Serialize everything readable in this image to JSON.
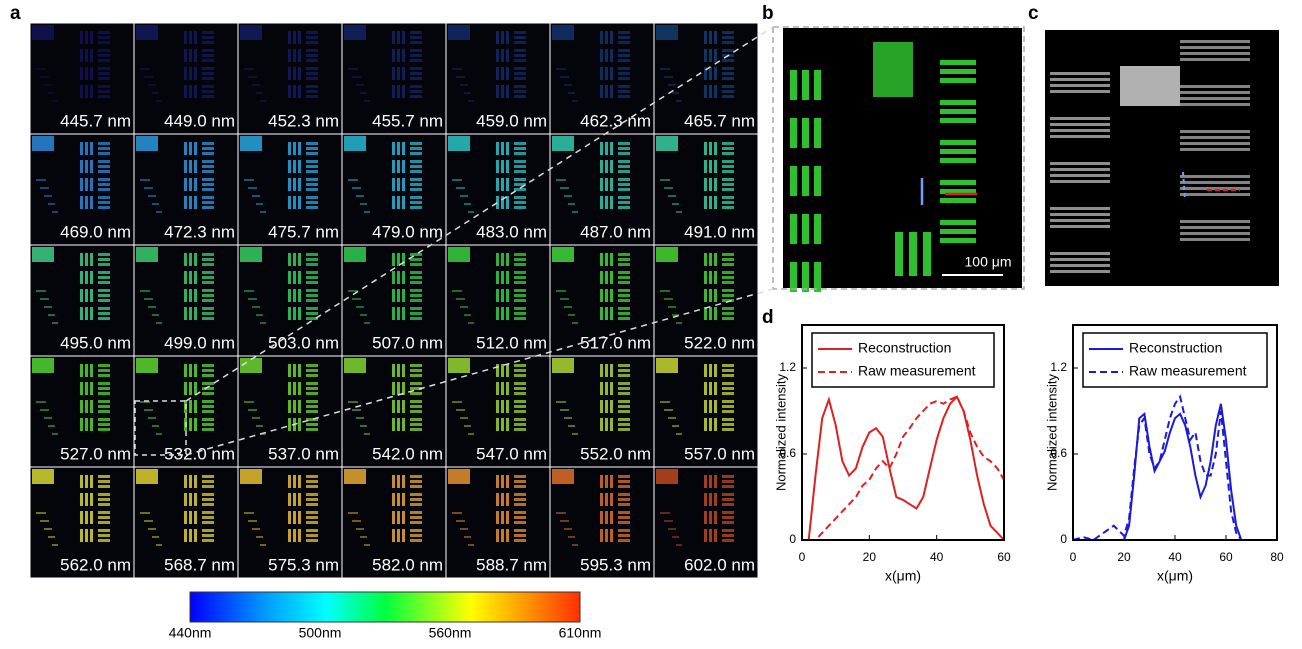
{
  "panel_labels": {
    "a": "a",
    "b": "b",
    "c": "c",
    "d": "d"
  },
  "tiles": [
    {
      "label": "445.7 nm",
      "color": "#1d1f9e"
    },
    {
      "label": "449.0 nm",
      "color": "#1f2ca8"
    },
    {
      "label": "452.3 nm",
      "color": "#2233b0"
    },
    {
      "label": "455.7 nm",
      "color": "#2040b8"
    },
    {
      "label": "459.0 nm",
      "color": "#1f4cc0"
    },
    {
      "label": "462.3 nm",
      "color": "#1e5ac8"
    },
    {
      "label": "465.7 nm",
      "color": "#2070d0"
    },
    {
      "label": "469.0 nm",
      "color": "#2a8ad8"
    },
    {
      "label": "472.3 nm",
      "color": "#2a9ade"
    },
    {
      "label": "475.7 nm",
      "color": "#28a8e0"
    },
    {
      "label": "479.0 nm",
      "color": "#28b8d8"
    },
    {
      "label": "483.0 nm",
      "color": "#2cc4c8"
    },
    {
      "label": "487.0 nm",
      "color": "#30ccb0"
    },
    {
      "label": "491.0 nm",
      "color": "#38d0a0"
    },
    {
      "label": "495.0 nm",
      "color": "#40d088"
    },
    {
      "label": "499.0 nm",
      "color": "#3ad070"
    },
    {
      "label": "503.0 nm",
      "color": "#34d060"
    },
    {
      "label": "507.0 nm",
      "color": "#30d050"
    },
    {
      "label": "512.0 nm",
      "color": "#38d040"
    },
    {
      "label": "517.0 nm",
      "color": "#40d838"
    },
    {
      "label": "522.0 nm",
      "color": "#48d830"
    },
    {
      "label": "527.0 nm",
      "color": "#50d830"
    },
    {
      "label": "532.0 nm",
      "color": "#5cd830"
    },
    {
      "label": "537.0 nm",
      "color": "#6cd830"
    },
    {
      "label": "542.0 nm",
      "color": "#80d830"
    },
    {
      "label": "547.0 nm",
      "color": "#98d830"
    },
    {
      "label": "552.0 nm",
      "color": "#b0d830"
    },
    {
      "label": "557.0 nm",
      "color": "#c8d830"
    },
    {
      "label": "562.0 nm",
      "color": "#d8d830"
    },
    {
      "label": "568.7 nm",
      "color": "#e0d030"
    },
    {
      "label": "575.3 nm",
      "color": "#e8c030"
    },
    {
      "label": "582.0 nm",
      "color": "#e8a830"
    },
    {
      "label": "588.7 nm",
      "color": "#e89030"
    },
    {
      "label": "595.3 nm",
      "color": "#e07028"
    },
    {
      "label": "602.0 nm",
      "color": "#c04820"
    }
  ],
  "colorbar": {
    "labels": [
      "440nm",
      "500nm",
      "560nm",
      "610nm"
    ]
  },
  "scale_bar": "100 μm",
  "chart_data": [
    {
      "type": "line",
      "xlabel": "x(μm)",
      "ylabel": "Normalized intensity",
      "legend": "top",
      "x": [
        2,
        4,
        6,
        8,
        10,
        12,
        14,
        16,
        18,
        20,
        22,
        24,
        26,
        28,
        30,
        32,
        34,
        36,
        38,
        40,
        42,
        44,
        46,
        48,
        50,
        52,
        54,
        56,
        58,
        60
      ],
      "xlim": [
        0,
        60
      ],
      "ylim": [
        0,
        1.5
      ],
      "xticks": [
        0,
        20,
        40,
        60
      ],
      "yticks": [
        0,
        0.6,
        1.2
      ],
      "series": [
        {
          "name": "Reconstruction",
          "color": "#e02020",
          "linestyle": "solid",
          "values": [
            0,
            0.45,
            0.85,
            0.98,
            0.8,
            0.55,
            0.45,
            0.5,
            0.65,
            0.75,
            0.78,
            0.72,
            0.5,
            0.3,
            0.28,
            0.25,
            0.22,
            0.3,
            0.5,
            0.7,
            0.85,
            0.95,
            1.0,
            0.9,
            0.7,
            0.45,
            0.25,
            0.1,
            0.05,
            0
          ]
        },
        {
          "name": "Raw measurement",
          "color": "#e02020",
          "linestyle": "dashed",
          "values": [
            0,
            0,
            0.05,
            0.1,
            0.15,
            0.2,
            0.25,
            0.3,
            0.38,
            0.42,
            0.5,
            0.55,
            0.5,
            0.6,
            0.72,
            0.78,
            0.85,
            0.9,
            0.95,
            0.97,
            0.95,
            0.98,
            1.0,
            0.9,
            0.75,
            0.65,
            0.58,
            0.55,
            0.5,
            0.42
          ]
        }
      ]
    },
    {
      "type": "line",
      "xlabel": "x(μm)",
      "ylabel": "Normalized intensity",
      "legend": "top",
      "x": [
        0,
        4,
        8,
        12,
        16,
        20,
        22,
        24,
        26,
        28,
        30,
        32,
        34,
        36,
        38,
        40,
        42,
        44,
        46,
        48,
        50,
        52,
        54,
        56,
        58,
        60,
        62,
        64,
        66,
        70,
        75,
        80
      ],
      "xlim": [
        0,
        80
      ],
      "ylim": [
        0,
        1.5
      ],
      "xticks": [
        0,
        20,
        40,
        60,
        80
      ],
      "yticks": [
        0,
        0.6,
        1.2
      ],
      "series": [
        {
          "name": "Reconstruction",
          "color": "#1a1adc",
          "linestyle": "solid",
          "values": [
            0,
            0,
            0,
            0,
            0,
            0,
            0.1,
            0.45,
            0.85,
            0.88,
            0.65,
            0.48,
            0.55,
            0.62,
            0.75,
            0.85,
            0.88,
            0.8,
            0.65,
            0.45,
            0.3,
            0.38,
            0.55,
            0.8,
            0.95,
            0.7,
            0.35,
            0.1,
            0,
            0,
            0,
            0
          ]
        },
        {
          "name": "Raw measurement",
          "color": "#1a1adc",
          "linestyle": "dashed",
          "values": [
            0,
            0.02,
            0,
            0.05,
            0.1,
            0.03,
            0.15,
            0.5,
            0.8,
            0.85,
            0.6,
            0.5,
            0.55,
            0.7,
            0.85,
            0.95,
            1.0,
            0.85,
            0.7,
            0.75,
            0.55,
            0.45,
            0.45,
            0.6,
            0.9,
            0.55,
            0.2,
            0.05,
            0,
            0,
            0,
            0
          ]
        }
      ]
    }
  ]
}
